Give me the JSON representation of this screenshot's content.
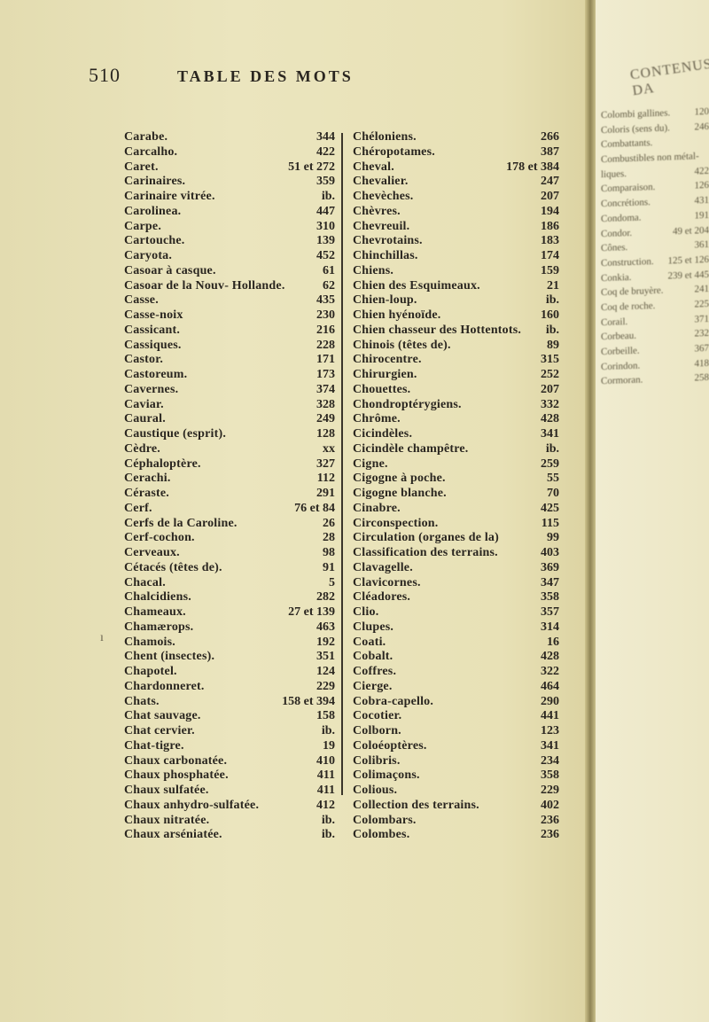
{
  "header": {
    "page_number": "510",
    "running_title": "TABLE DES MOTS"
  },
  "left_column": [
    {
      "term": "Carabe.",
      "ref": "344"
    },
    {
      "term": "Carcalho.",
      "ref": "422"
    },
    {
      "term": "Caret.",
      "ref": "51 et 272"
    },
    {
      "term": "Carinaires.",
      "ref": "359"
    },
    {
      "term": "Carinaire vitrée.",
      "ref": "ib."
    },
    {
      "term": "Carolinea.",
      "ref": "447"
    },
    {
      "term": "Carpe.",
      "ref": "310"
    },
    {
      "term": "Cartouche.",
      "ref": "139"
    },
    {
      "term": "Caryota.",
      "ref": "452"
    },
    {
      "term": "Casoar à casque.",
      "ref": "61"
    },
    {
      "term": "Casoar de la Nouv- Hollande.",
      "ref": "62"
    },
    {
      "term": "Casse.",
      "ref": "435"
    },
    {
      "term": "Casse-noix",
      "ref": "230"
    },
    {
      "term": "Cassicant.",
      "ref": "216"
    },
    {
      "term": "Cassiques.",
      "ref": "228"
    },
    {
      "term": "Castor.",
      "ref": "171"
    },
    {
      "term": "Castoreum.",
      "ref": "173"
    },
    {
      "term": "Cavernes.",
      "ref": "374"
    },
    {
      "term": "Caviar.",
      "ref": "328"
    },
    {
      "term": "Caural.",
      "ref": "249"
    },
    {
      "term": "Caustique (esprit).",
      "ref": "128"
    },
    {
      "term": "Cèdre.",
      "ref": "xx"
    },
    {
      "term": "Céphaloptère.",
      "ref": "327"
    },
    {
      "term": "Cerachi.",
      "ref": "112"
    },
    {
      "term": "Céraste.",
      "ref": "291"
    },
    {
      "term": "Cerf.",
      "ref": "76 et 84"
    },
    {
      "term": "Cerfs de la Caroline.",
      "ref": "26"
    },
    {
      "term": "Cerf-cochon.",
      "ref": "28"
    },
    {
      "term": "Cerveaux.",
      "ref": "98"
    },
    {
      "term": "Cétacés (têtes de).",
      "ref": "91"
    },
    {
      "term": "Chacal.",
      "ref": "5"
    },
    {
      "term": "Chalcidiens.",
      "ref": "282"
    },
    {
      "term": "Chameaux.",
      "ref": "27 et 139"
    },
    {
      "term": "Chamærops.",
      "ref": "463"
    },
    {
      "term": "Chamois.",
      "ref": "192"
    },
    {
      "term": "Chent (insectes).",
      "ref": "351"
    },
    {
      "term": "Chapotel.",
      "ref": "124"
    },
    {
      "term": "Chardonneret.",
      "ref": "229"
    },
    {
      "term": "Chats.",
      "ref": "158 et 394"
    },
    {
      "term": "Chat sauvage.",
      "ref": "158"
    },
    {
      "term": "Chat cervier.",
      "ref": "ib."
    },
    {
      "term": "Chat-tigre.",
      "ref": "19"
    },
    {
      "term": "Chaux carbonatée.",
      "ref": "410"
    },
    {
      "term": "Chaux phosphatée.",
      "ref": "411"
    },
    {
      "term": "Chaux sulfatée.",
      "ref": "411"
    },
    {
      "term": "Chaux anhydro-sulfatée.",
      "ref": "412"
    },
    {
      "term": "Chaux nitratée.",
      "ref": "ib."
    },
    {
      "term": "Chaux arséniatée.",
      "ref": "ib."
    }
  ],
  "right_column": [
    {
      "term": "Chéloniens.",
      "ref": "266"
    },
    {
      "term": "Chéropotames.",
      "ref": "387"
    },
    {
      "term": "Cheval.",
      "ref": "178 et 384"
    },
    {
      "term": "Chevalier.",
      "ref": "247"
    },
    {
      "term": "Chevèches.",
      "ref": "207"
    },
    {
      "term": "Chèvres.",
      "ref": "194"
    },
    {
      "term": "Chevreuil.",
      "ref": "186"
    },
    {
      "term": "Chevrotains.",
      "ref": "183"
    },
    {
      "term": "Chinchillas.",
      "ref": "174"
    },
    {
      "term": "Chiens.",
      "ref": "159"
    },
    {
      "term": "Chien des Esquimeaux.",
      "ref": "21"
    },
    {
      "term": "Chien-loup.",
      "ref": "ib."
    },
    {
      "term": "Chien hyénoïde.",
      "ref": "160"
    },
    {
      "term": "Chien chasseur des Hottentots.",
      "ref": "ib."
    },
    {
      "term": "Chinois (têtes de).",
      "ref": "89"
    },
    {
      "term": "Chirocentre.",
      "ref": "315"
    },
    {
      "term": "Chirurgien.",
      "ref": "252"
    },
    {
      "term": "Chouettes.",
      "ref": "207"
    },
    {
      "term": "Chondroptérygiens.",
      "ref": "332"
    },
    {
      "term": "Chrôme.",
      "ref": "428"
    },
    {
      "term": "Cicindèles.",
      "ref": "341"
    },
    {
      "term": "Cicindèle champêtre.",
      "ref": "ib."
    },
    {
      "term": "Cigne.",
      "ref": "259"
    },
    {
      "term": "Cigogne à poche.",
      "ref": "55"
    },
    {
      "term": "Cigogne blanche.",
      "ref": "70"
    },
    {
      "term": "Cinabre.",
      "ref": "425"
    },
    {
      "term": "Circonspection.",
      "ref": "115"
    },
    {
      "term": "Circulation (organes de la)",
      "ref": "99"
    },
    {
      "term": "Classification des terrains.",
      "ref": "403"
    },
    {
      "term": "Clavagelle.",
      "ref": "369"
    },
    {
      "term": "Clavicornes.",
      "ref": "347"
    },
    {
      "term": "Cléadores.",
      "ref": "358"
    },
    {
      "term": "Clio.",
      "ref": "357"
    },
    {
      "term": "Clupes.",
      "ref": "314"
    },
    {
      "term": "Coati.",
      "ref": "16"
    },
    {
      "term": "Cobalt.",
      "ref": "428"
    },
    {
      "term": "Coffres.",
      "ref": "322"
    },
    {
      "term": "Cierge.",
      "ref": "464"
    },
    {
      "term": "Cobra-capello.",
      "ref": "290"
    },
    {
      "term": "Cocotier.",
      "ref": "441"
    },
    {
      "term": "Colborn.",
      "ref": "123"
    },
    {
      "term": "Coloéoptères.",
      "ref": "341"
    },
    {
      "term": "Colibris.",
      "ref": "234"
    },
    {
      "term": "Colimaçons.",
      "ref": "358"
    },
    {
      "term": "Colious.",
      "ref": "229"
    },
    {
      "term": "Collection des terrains.",
      "ref": "402"
    },
    {
      "term": "Colombars.",
      "ref": "236"
    },
    {
      "term": "Colombes.",
      "ref": "236"
    }
  ],
  "facing_page": {
    "title": "CONTENUS DA",
    "rows": [
      {
        "term": "Colombi gallines.",
        "ref": "120"
      },
      {
        "term": "Coloris (sens du).",
        "ref": "246"
      },
      {
        "term": "Combattants.",
        "ref": ""
      },
      {
        "term": "Combustibles non métal-",
        "ref": ""
      },
      {
        "term": "liques.",
        "ref": "422"
      },
      {
        "term": "Comparaison.",
        "ref": "126"
      },
      {
        "term": "Concrétions.",
        "ref": "431"
      },
      {
        "term": "Condoma.",
        "ref": "191"
      },
      {
        "term": "Condor.",
        "ref": "49 et 204"
      },
      {
        "term": "Cônes.",
        "ref": "361"
      },
      {
        "term": "Construction.",
        "ref": "125 et 126"
      },
      {
        "term": "Conkia.",
        "ref": "239 et 445"
      },
      {
        "term": "Coq de bruyère.",
        "ref": "241"
      },
      {
        "term": "Coq de roche.",
        "ref": "225"
      },
      {
        "term": "Corail.",
        "ref": "371"
      },
      {
        "term": "Corbeau.",
        "ref": "232"
      },
      {
        "term": "Corbeille.",
        "ref": "367"
      },
      {
        "term": "Corindon.",
        "ref": "418"
      },
      {
        "term": "Cormoran.",
        "ref": "258"
      }
    ]
  }
}
